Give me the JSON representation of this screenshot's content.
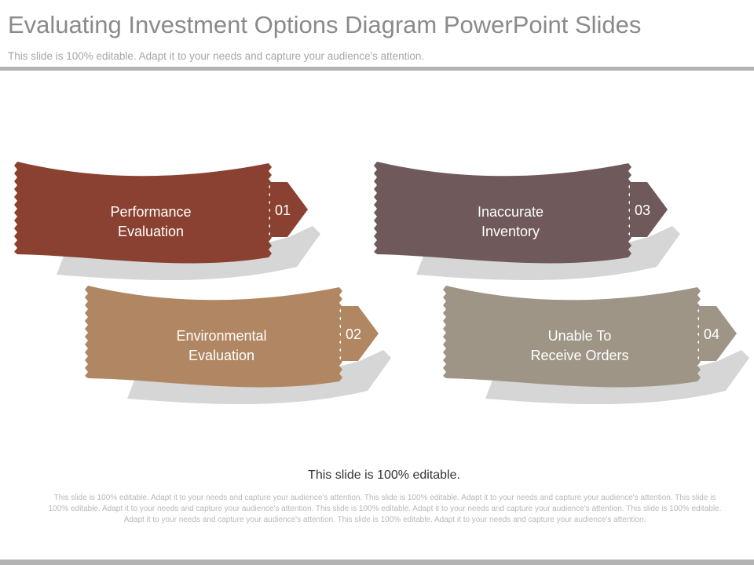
{
  "header": {
    "title": "Evaluating Investment Options Diagram PowerPoint Slides",
    "subtitle": "This slide is 100% editable. Adapt it to your needs and capture your audience's attention."
  },
  "colors": {
    "item_01": "#8b4131",
    "item_02": "#b08762",
    "item_03": "#70595a",
    "item_04": "#9e9587",
    "shadow": "#d6d6d6"
  },
  "items": [
    {
      "number": "01",
      "label": "Performance\nEvaluation",
      "color": "#8b4131"
    },
    {
      "number": "02",
      "label": "Environmental\nEvaluation",
      "color": "#b08762"
    },
    {
      "number": "03",
      "label": "Inaccurate\nInventory",
      "color": "#70595a"
    },
    {
      "number": "04",
      "label": "Unable To\nReceive Orders",
      "color": "#9e9587"
    }
  ],
  "footer": {
    "editable_note": "This slide is 100% editable.",
    "body": "This slide is 100% editable. Adapt it to your needs and capture your audience's attention. This slide is 100% editable. Adapt it to your needs and capture your audience's attention. This slide is 100% editable. Adapt it to your needs and capture your audience's attention. This slide is 100% editable. Adapt it to your needs and capture your audience's attention. This slide is 100% editable. Adapt it to your needs and capture your audience's attention. This slide is 100% editable. Adapt it to your needs and capture your audience's attention."
  }
}
